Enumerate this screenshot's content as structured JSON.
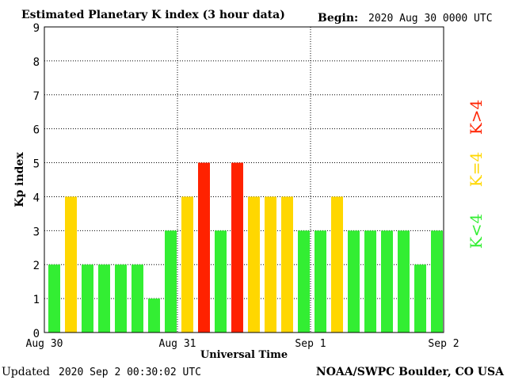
{
  "chart_data": {
    "type": "bar",
    "title": "Estimated Planetary K index (3 hour data)",
    "begin_label": "Begin:",
    "begin_value": "2020 Aug 30 0000 UTC",
    "ylabel": "Kp index",
    "xlabel": "Universal Time",
    "ylim": [
      0,
      9
    ],
    "yticks": [
      "0",
      "1",
      "2",
      "3",
      "4",
      "5",
      "6",
      "7",
      "8",
      "9"
    ],
    "x_tick_labels": [
      "Aug 30",
      "Aug 31",
      "Sep 1",
      "Sep 2"
    ],
    "values": [
      2,
      4,
      2,
      2,
      2,
      2,
      1,
      3,
      4,
      5,
      3,
      5,
      4,
      4,
      4,
      3,
      3,
      4,
      3,
      3,
      3,
      3,
      2,
      3
    ],
    "grid": true,
    "legend": [
      {
        "label": "K<4",
        "color": "#33ee33"
      },
      {
        "label": "K=4",
        "color": "#ffd700"
      },
      {
        "label": "K>4",
        "color": "#ff2200"
      }
    ],
    "colors": {
      "low": "#33ee33",
      "mid": "#ffd700",
      "high": "#ff2200"
    },
    "updated_label": "Updated",
    "updated_value": "2020 Sep  2 00:30:02 UTC",
    "source": "NOAA/SWPC Boulder, CO USA"
  }
}
